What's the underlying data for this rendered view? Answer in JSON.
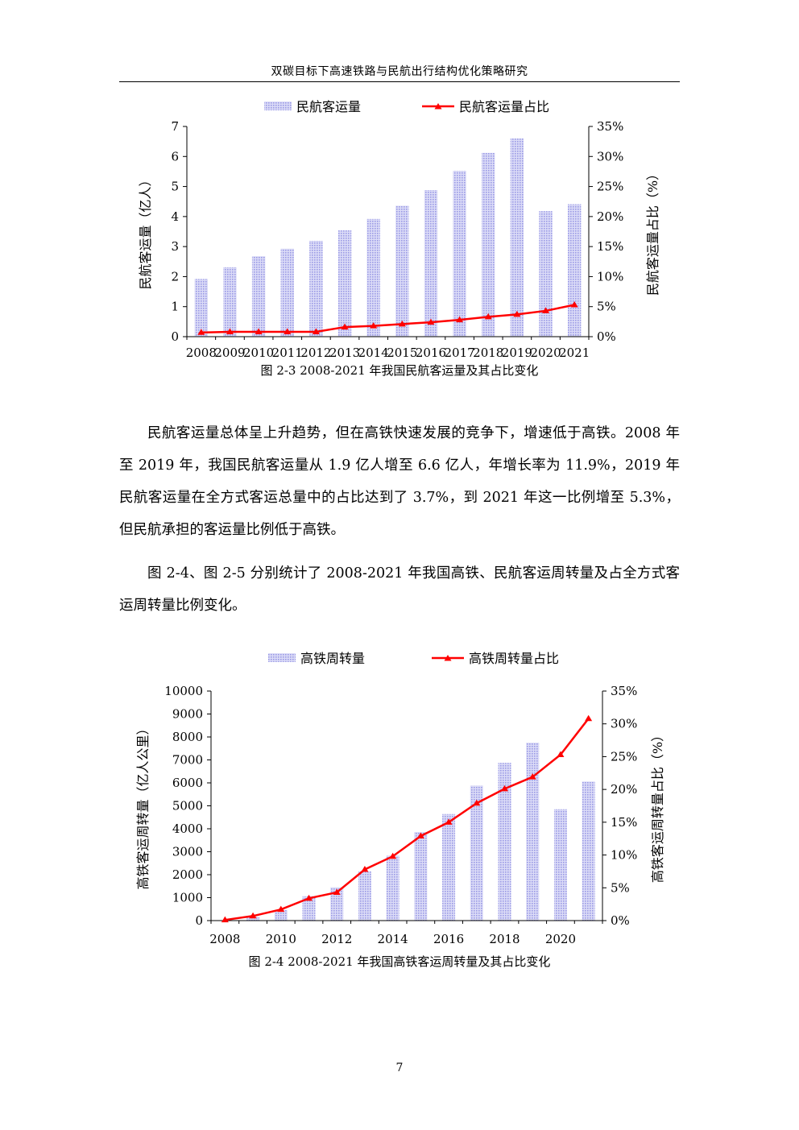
{
  "header": {
    "running_title": "双碳目标下高速铁路与民航出行结构优化策略研究"
  },
  "figures": [
    {
      "caption": "图 2-3 2008-2021 年我国民航客运量及其占比变化",
      "chart_data": {
        "type": "bar",
        "categories": [
          "2008",
          "2009",
          "2010",
          "2011",
          "2012",
          "2013",
          "2014",
          "2015",
          "2016",
          "2017",
          "2018",
          "2019",
          "2020",
          "2021"
        ],
        "series": [
          {
            "name": "民航客运量",
            "kind": "bar",
            "axis": "left",
            "values": [
              1.92,
              2.31,
              2.68,
              2.93,
              3.19,
              3.54,
              3.92,
              4.36,
              4.88,
              5.52,
              6.12,
              6.6,
              4.18,
              4.41
            ]
          },
          {
            "name": "民航客运量占比",
            "kind": "line",
            "axis": "right",
            "values": [
              0.7,
              0.8,
              0.8,
              0.8,
              0.8,
              1.6,
              1.8,
              2.1,
              2.4,
              2.8,
              3.3,
              3.7,
              4.3,
              5.3
            ]
          }
        ],
        "ylabel_left": "民航客运量（亿人）",
        "ylabel_right": "民航客运量占比（%）",
        "ylim_left": [
          0,
          7
        ],
        "ylim_right": [
          0,
          35
        ],
        "yticks_left": [
          "0",
          "1",
          "2",
          "3",
          "4",
          "5",
          "6",
          "7"
        ],
        "yticks_right": [
          "0%",
          "5%",
          "10%",
          "15%",
          "20%",
          "25%",
          "30%",
          "35%"
        ],
        "xtick_labels": [
          "2008",
          "2009",
          "2010",
          "2011",
          "2012",
          "2013",
          "2014",
          "2015",
          "2016",
          "2017",
          "2018",
          "2019",
          "2020",
          "2021"
        ],
        "grid": false,
        "legend_position": "top",
        "colors": {
          "bar": "#9a9ae6",
          "line": "#ff0000"
        }
      }
    },
    {
      "caption": "图 2-4 2008-2021 年我国高铁客运周转量及其占比变化",
      "chart_data": {
        "type": "bar",
        "categories": [
          "2008",
          "2009",
          "2010",
          "2011",
          "2012",
          "2013",
          "2014",
          "2015",
          "2016",
          "2017",
          "2018",
          "2019",
          "2020",
          "2021"
        ],
        "series": [
          {
            "name": "高铁周转量",
            "kind": "bar",
            "axis": "left",
            "values": [
              10,
              160,
              460,
              1060,
              1450,
              2140,
              2830,
              3860,
              4640,
              5880,
              6870,
              7750,
              4850,
              6060
            ]
          },
          {
            "name": "高铁周转量占比",
            "kind": "line",
            "axis": "right",
            "values": [
              0.1,
              0.7,
              1.7,
              3.4,
              4.3,
              7.8,
              9.8,
              12.9,
              15.0,
              17.9,
              20.1,
              21.9,
              25.3,
              30.8
            ]
          }
        ],
        "ylabel_left": "高铁客运周转量（亿人公里）",
        "ylabel_right": "高铁客运周转量占比（%）",
        "ylim_left": [
          0,
          10000
        ],
        "ylim_right": [
          0,
          35
        ],
        "yticks_left": [
          "0",
          "1000",
          "2000",
          "3000",
          "4000",
          "5000",
          "6000",
          "7000",
          "8000",
          "9000",
          "10000"
        ],
        "yticks_right": [
          "0%",
          "5%",
          "10%",
          "15%",
          "20%",
          "25%",
          "30%",
          "35%"
        ],
        "xtick_labels": [
          "2008",
          "",
          "2010",
          "",
          "2012",
          "",
          "2014",
          "",
          "2016",
          "",
          "2018",
          "",
          "2020",
          ""
        ],
        "grid": false,
        "legend_position": "top",
        "colors": {
          "bar": "#9a9ae6",
          "line": "#ff0000"
        }
      }
    }
  ],
  "body": {
    "paragraph_1": "民航客运量总体呈上升趋势，但在高铁快速发展的竞争下，增速低于高铁。2008 年至 2019 年，我国民航客运量从 1.9 亿人增至 6.6 亿人，年增长率为 11.9%，2019 年民航客运量在全方式客运总量中的占比达到了 3.7%，到 2021 年这一比例增至 5.3%，但民航承担的客运量比例低于高铁。",
    "paragraph_2": "图 2-4、图 2-5 分别统计了 2008-2021 年我国高铁、民航客运周转量及占全方式客运周转量比例变化。"
  },
  "footer": {
    "page_number": "7"
  }
}
